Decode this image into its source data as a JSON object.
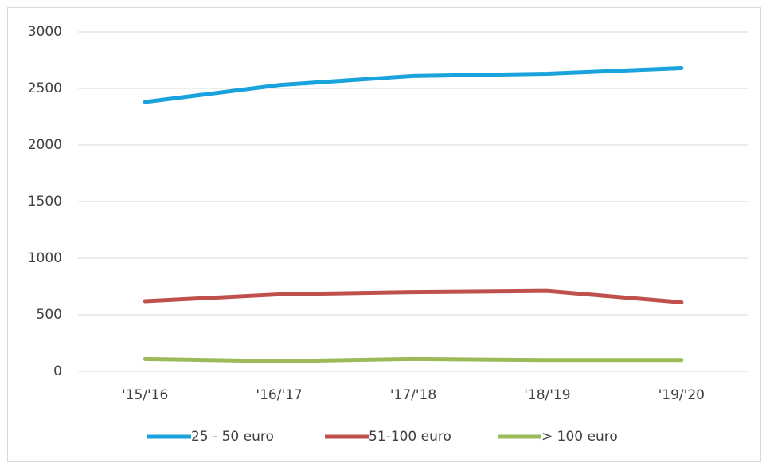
{
  "chart_data": {
    "type": "line",
    "categories": [
      "'15/'16",
      "'16/'17",
      "'17/'18",
      "'18/'19",
      "'19/'20"
    ],
    "series": [
      {
        "name": "25 - 50 euro",
        "color": "#1aa2dc",
        "values": [
          2380,
          2530,
          2610,
          2630,
          2680
        ]
      },
      {
        "name": "51-100 euro",
        "color": "#c0504d",
        "values": [
          620,
          680,
          700,
          710,
          610
        ]
      },
      {
        "name": "> 100 euro",
        "color": "#9bbb59",
        "values": [
          110,
          90,
          110,
          100,
          100
        ]
      }
    ],
    "ylim": [
      0,
      3000
    ],
    "yticks": [
      0,
      500,
      1000,
      1500,
      2000,
      2500,
      3000
    ],
    "grid": true,
    "legend": "bottom"
  }
}
